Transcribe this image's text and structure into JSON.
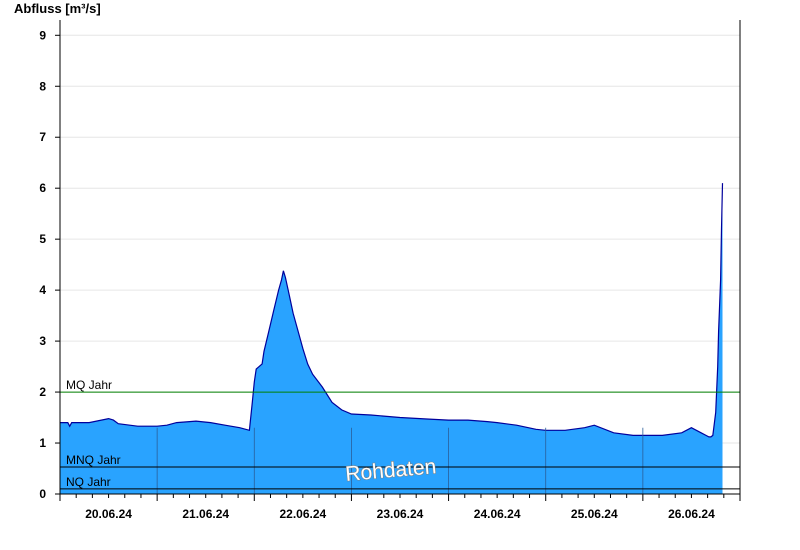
{
  "chart_data": {
    "type": "area",
    "ylabel": "Abfluss [m³/s]",
    "xlabel": "",
    "ylim": [
      0,
      9.3
    ],
    "yticks": [
      0,
      1,
      2,
      3,
      4,
      5,
      6,
      7,
      8,
      9
    ],
    "grid": true,
    "x_unit": "day index (20.06.24 00:00 = 0)",
    "x_range": [
      0,
      7
    ],
    "x_categories": [
      "20.06.24",
      "21.06.24",
      "22.06.24",
      "23.06.24",
      "24.06.24",
      "25.06.24",
      "26.06.24"
    ],
    "series": [
      {
        "color": "#29a3ff",
        "line_color": "#00009c",
        "x": [
          0,
          0.08,
          0.1,
          0.12,
          0.3,
          0.5,
          0.55,
          0.6,
          0.8,
          1.0,
          1.1,
          1.2,
          1.4,
          1.55,
          1.7,
          1.85,
          1.95,
          1.98,
          2.0,
          2.02,
          2.05,
          2.08,
          2.1,
          2.15,
          2.2,
          2.25,
          2.28,
          2.3,
          2.32,
          2.36,
          2.4,
          2.45,
          2.5,
          2.55,
          2.6,
          2.7,
          2.8,
          2.9,
          3.0,
          3.2,
          3.5,
          3.8,
          4.0,
          4.2,
          4.4,
          4.5,
          4.7,
          4.9,
          5.0,
          5.2,
          5.4,
          5.5,
          5.7,
          5.9,
          6.0,
          6.2,
          6.4,
          6.5,
          6.6,
          6.65,
          6.68,
          6.7,
          6.72,
          6.73,
          6.75,
          6.77,
          6.78,
          6.79,
          6.8,
          6.81,
          6.82
        ],
        "values": [
          1.4,
          1.4,
          1.33,
          1.4,
          1.4,
          1.48,
          1.45,
          1.38,
          1.33,
          1.33,
          1.35,
          1.4,
          1.43,
          1.4,
          1.35,
          1.3,
          1.25,
          1.8,
          2.2,
          2.45,
          2.5,
          2.55,
          2.8,
          3.2,
          3.6,
          4.0,
          4.2,
          4.38,
          4.25,
          3.9,
          3.55,
          3.2,
          2.85,
          2.55,
          2.35,
          2.1,
          1.8,
          1.65,
          1.57,
          1.55,
          1.5,
          1.47,
          1.45,
          1.45,
          1.42,
          1.4,
          1.35,
          1.27,
          1.25,
          1.25,
          1.3,
          1.35,
          1.2,
          1.15,
          1.15,
          1.15,
          1.2,
          1.3,
          1.2,
          1.15,
          1.12,
          1.12,
          1.15,
          1.3,
          1.6,
          2.5,
          3.2,
          3.7,
          4.2,
          5.2,
          6.1
        ]
      }
    ],
    "reference_lines": [
      {
        "label": "MQ Jahr",
        "value": 2.0,
        "color": "#008000"
      },
      {
        "label": "MNQ Jahr",
        "value": 0.53,
        "color": "#000000"
      },
      {
        "label": "NQ Jahr",
        "value": 0.1,
        "color": "#000000"
      }
    ],
    "watermark": "Rohdaten"
  }
}
